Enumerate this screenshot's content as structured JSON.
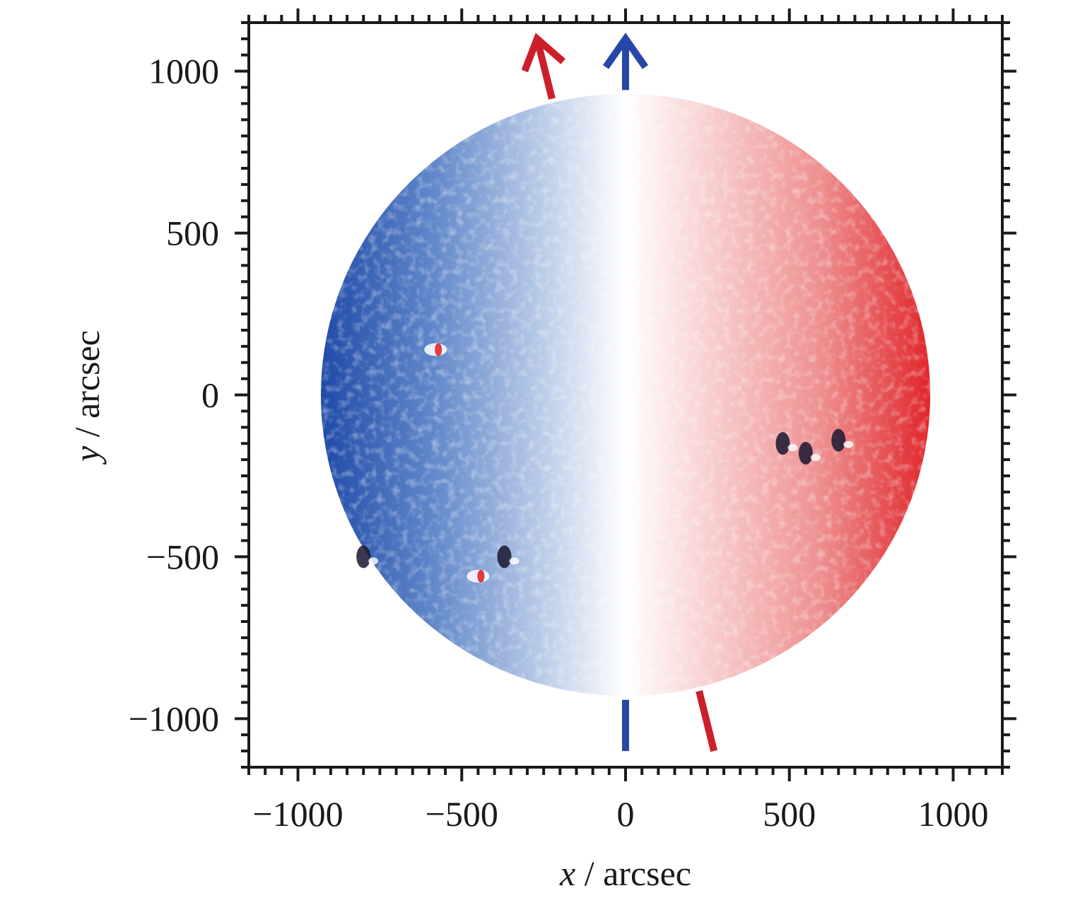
{
  "chart_data": {
    "type": "heatmap",
    "xlabel": {
      "var": "x",
      "unit": " / arcsec"
    },
    "ylabel": {
      "var": "y",
      "unit": " / arcsec"
    },
    "xlim": [
      -1150,
      1150
    ],
    "ylim": [
      -1150,
      1150
    ],
    "x_ticks": [
      {
        "value": -1000,
        "label": "−1000"
      },
      {
        "value": -500,
        "label": "−500"
      },
      {
        "value": 0,
        "label": "0"
      },
      {
        "value": 500,
        "label": "500"
      },
      {
        "value": 1000,
        "label": "1000"
      }
    ],
    "y_ticks": [
      {
        "value": 1000,
        "label": "1000"
      },
      {
        "value": 500,
        "label": "500"
      },
      {
        "value": 0,
        "label": "0"
      },
      {
        "value": -500,
        "label": "−500"
      },
      {
        "value": -1000,
        "label": "−1000"
      }
    ],
    "minor_tick_step": 50,
    "grid": false,
    "legend": "none",
    "disk": {
      "center": [
        0,
        0
      ],
      "radius": 930
    },
    "colormap": {
      "negative": "#1f4aa8",
      "zero": "#ffffff",
      "positive": "#e0262b"
    },
    "axes": [
      {
        "name": "image-north",
        "color": "#2747a8",
        "from": [
          0,
          -1100
        ],
        "to": [
          0,
          1100
        ],
        "hidden_over_disk": true,
        "arrowhead": true
      },
      {
        "name": "solar-rotation-axis",
        "color": "#cc1f2a",
        "from": [
          270,
          -1100
        ],
        "to": [
          -270,
          1100
        ],
        "hidden_over_disk": true,
        "arrowhead": true
      }
    ],
    "active_regions": [
      {
        "x": -580,
        "y": 140,
        "kind": "mixed"
      },
      {
        "x": -370,
        "y": -500,
        "kind": "dark"
      },
      {
        "x": -450,
        "y": -560,
        "kind": "mixed"
      },
      {
        "x": -800,
        "y": -500,
        "kind": "dark"
      },
      {
        "x": 550,
        "y": -180,
        "kind": "dark"
      },
      {
        "x": 650,
        "y": -140,
        "kind": "dark"
      },
      {
        "x": 480,
        "y": -150,
        "kind": "dark"
      }
    ]
  }
}
